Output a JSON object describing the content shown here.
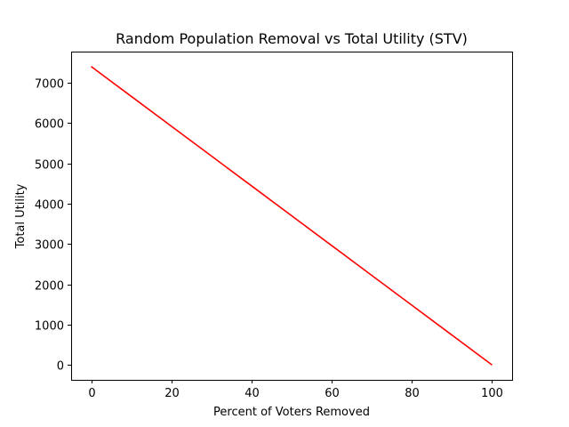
{
  "chart_data": {
    "type": "line",
    "title": "Random Population Removal vs Total Utility (STV)",
    "xlabel": "Percent of Voters Removed",
    "ylabel": "Total Utility",
    "xlim": [
      -5,
      105
    ],
    "ylim": [
      -370,
      7770
    ],
    "xticks": [
      0,
      20,
      40,
      60,
      80,
      100
    ],
    "yticks": [
      0,
      1000,
      2000,
      3000,
      4000,
      5000,
      6000,
      7000
    ],
    "grid": false,
    "series": [
      {
        "color": "#ff0000",
        "x": [
          0,
          10,
          20,
          30,
          40,
          50,
          60,
          70,
          80,
          90,
          100
        ],
        "y": [
          7400,
          6660,
          5920,
          5180,
          4440,
          3700,
          2960,
          2220,
          1480,
          740,
          0
        ]
      }
    ]
  }
}
